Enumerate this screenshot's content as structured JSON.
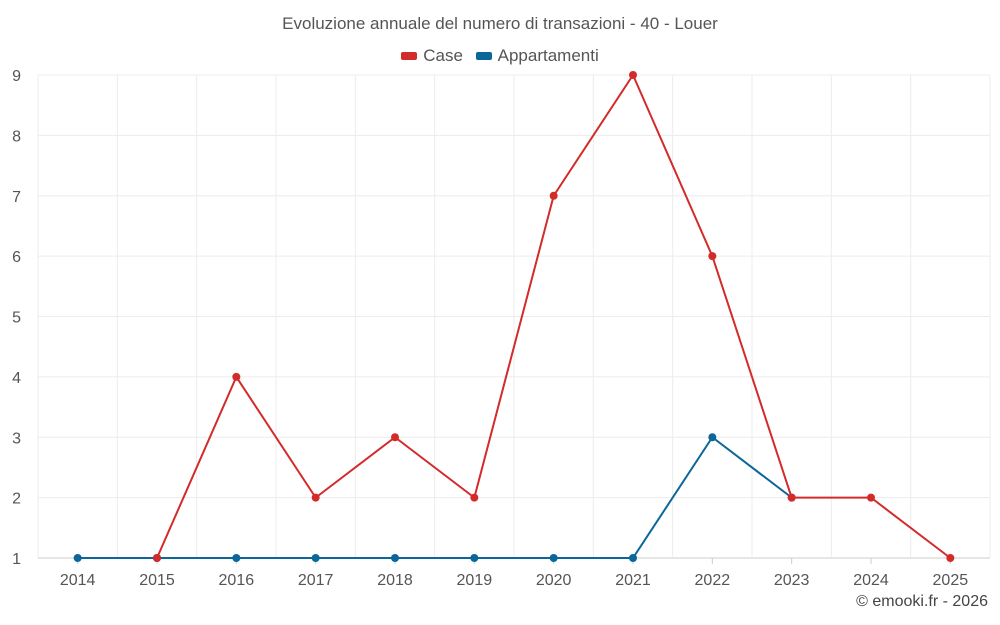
{
  "chart_data": {
    "type": "line",
    "title": "Evoluzione annuale del numero di transazioni - 40 - Louer",
    "xlabel": "",
    "ylabel": "",
    "categories": [
      "2014",
      "2015",
      "2016",
      "2017",
      "2018",
      "2019",
      "2020",
      "2021",
      "2022",
      "2023",
      "2024",
      "2025"
    ],
    "ylim": [
      1,
      9
    ],
    "yticks": [
      "1",
      "2",
      "3",
      "4",
      "5",
      "6",
      "7",
      "8",
      "9"
    ],
    "grid": true,
    "legend_position": "top-center",
    "series": [
      {
        "name": "Case",
        "color": "#d32a2a",
        "values": [
          null,
          1,
          4,
          2,
          3,
          2,
          7,
          9,
          6,
          2,
          2,
          1
        ]
      },
      {
        "name": "Appartamenti",
        "color": "#0b6699",
        "values": [
          1,
          1,
          1,
          1,
          1,
          1,
          1,
          1,
          3,
          2,
          null,
          null
        ]
      }
    ]
  },
  "credit": "© emooki.fr - 2026"
}
